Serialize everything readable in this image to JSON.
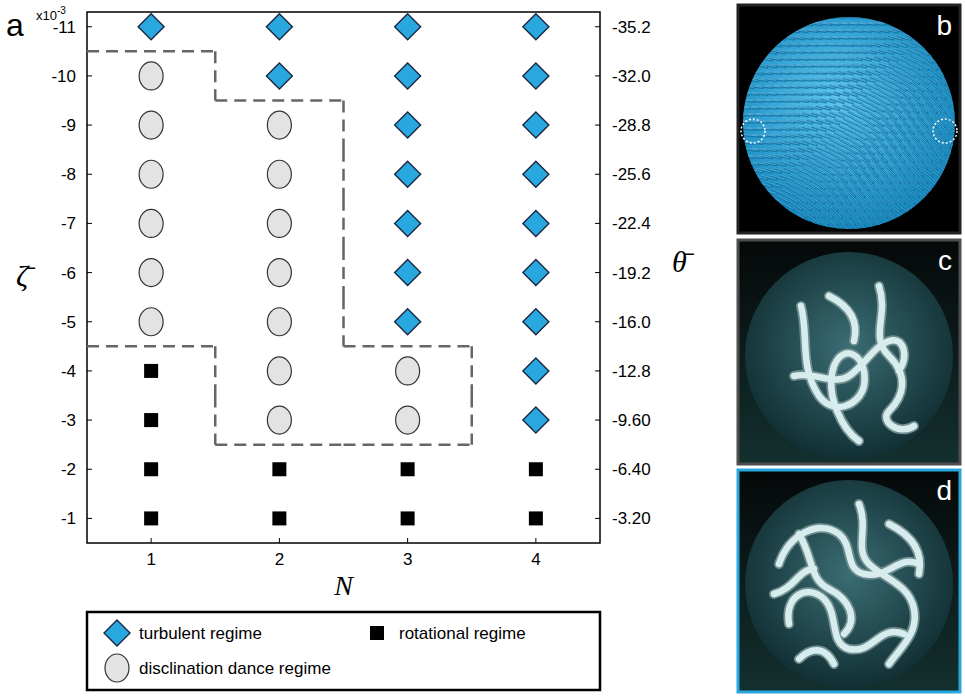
{
  "chart_data": {
    "type": "scatter",
    "panel_label": "a",
    "x_label": "N",
    "y_label": "ζ̄",
    "y2_label": "θ̄",
    "y_multiplier": {
      "base": "x10",
      "exponent": "-3"
    },
    "xlim": [
      0.5,
      4.5
    ],
    "xticks": [
      1,
      2,
      3,
      4
    ],
    "ylim": [
      -0.5,
      -11.3
    ],
    "yticks": [
      -1,
      -2,
      -3,
      -4,
      -5,
      -6,
      -7,
      -8,
      -9,
      -10,
      -11
    ],
    "y2lim": [
      -1.6,
      -36.16
    ],
    "y2ticks": [
      {
        "value": -3.2,
        "label": "-3.20"
      },
      {
        "value": -6.4,
        "label": "-6.40"
      },
      {
        "value": -9.6,
        "label": "-9.60"
      },
      -12.8,
      {
        "value": -16,
        "label": "-16.0"
      },
      -19.2,
      -22.4,
      -25.6,
      -28.8,
      {
        "value": -32,
        "label": "-32.0"
      },
      -35.2
    ],
    "grid": false,
    "legend": "bottom",
    "series": [
      {
        "name": "turbulent regime",
        "color": "#29a8e0",
        "marker": "diamond",
        "x": [
          1,
          2,
          2,
          3,
          3,
          3,
          3,
          3,
          3,
          3,
          4,
          4,
          4,
          4,
          4,
          4,
          4,
          4,
          4
        ],
        "values": [
          -11,
          -10,
          -11,
          -5,
          -6,
          -7,
          -8,
          -9,
          -10,
          -11,
          -3,
          -4,
          -5,
          -6,
          -7,
          -8,
          -9,
          -10,
          -11
        ]
      },
      {
        "name": "rotational regime",
        "color": "#000000",
        "marker": "square",
        "x": [
          1,
          1,
          1,
          1,
          2,
          2,
          3,
          3,
          4,
          4
        ],
        "values": [
          -1,
          -2,
          -3,
          -4,
          -1,
          -2,
          -1,
          -2,
          -1,
          -2
        ]
      },
      {
        "name": "disclination dance regime",
        "color": "#e3e3e3",
        "marker": "circle",
        "x": [
          1,
          1,
          1,
          1,
          1,
          1,
          2,
          2,
          2,
          2,
          2,
          2,
          2,
          3,
          3
        ],
        "values": [
          -5,
          -6,
          -7,
          -8,
          -9,
          -10,
          -3,
          -4,
          -5,
          -6,
          -7,
          -8,
          -9,
          -3,
          -4
        ]
      }
    ]
  },
  "images": [
    {
      "label": "b"
    },
    {
      "label": "c"
    },
    {
      "label": "d"
    }
  ]
}
